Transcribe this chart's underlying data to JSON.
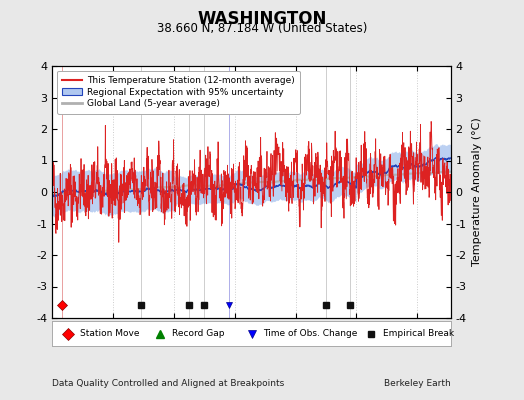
{
  "title": "WASHINGTON",
  "subtitle": "38.660 N, 87.184 W (United States)",
  "ylabel": "Temperature Anomaly (°C)",
  "footer_left": "Data Quality Controlled and Aligned at Breakpoints",
  "footer_right": "Berkeley Earth",
  "xlim": [
    1880,
    2011
  ],
  "ylim": [
    -4,
    4
  ],
  "yticks": [
    -4,
    -3,
    -2,
    -1,
    0,
    1,
    2,
    3,
    4
  ],
  "xticks": [
    1900,
    1920,
    1940,
    1960,
    1980,
    2000
  ],
  "bg_color": "#e8e8e8",
  "plot_bg_color": "#ffffff",
  "station_moves": [
    1883
  ],
  "record_gaps": [],
  "obs_changes": [
    1938
  ],
  "empirical_breaks": [
    1909,
    1925,
    1930,
    1970,
    1978
  ],
  "seed": 42
}
